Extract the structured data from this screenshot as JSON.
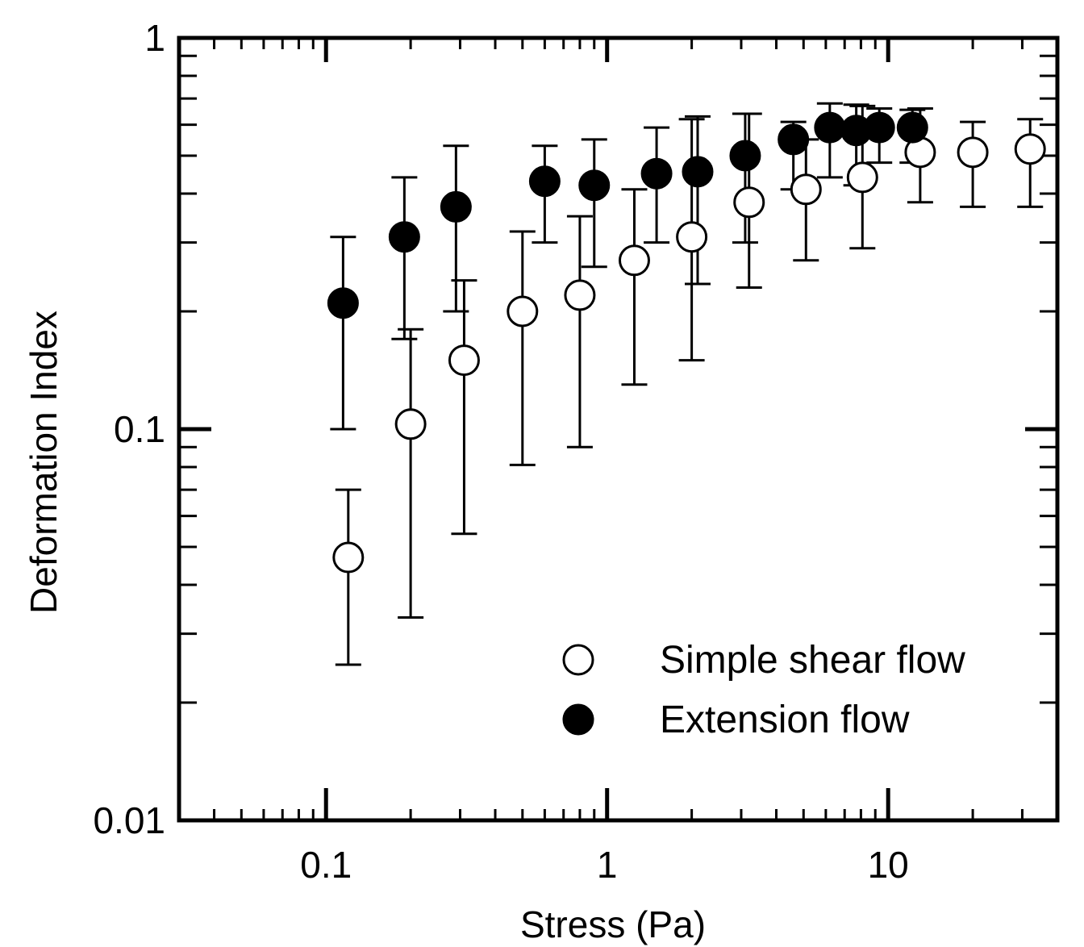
{
  "chart_data": {
    "type": "scatter",
    "title": "",
    "xlabel": "Stress (Pa)",
    "ylabel": "Deformation Index",
    "xscale": "log",
    "yscale": "log",
    "xlim": [
      0.03,
      40
    ],
    "ylim": [
      0.01,
      1
    ],
    "xticks": [
      {
        "value": 0.1,
        "label": "0.1"
      },
      {
        "value": 1,
        "label": "1"
      },
      {
        "value": 10,
        "label": "10"
      }
    ],
    "yticks": [
      {
        "value": 0.01,
        "label": "0.01"
      },
      {
        "value": 0.1,
        "label": "0.1"
      },
      {
        "value": 1,
        "label": "1"
      }
    ],
    "grid": false,
    "legend_position": "bottom-right",
    "series": [
      {
        "name": "Simple shear flow",
        "marker": "open-circle",
        "points": [
          {
            "x": 0.12,
            "y": 0.047,
            "lo": 0.025,
            "hi": 0.07
          },
          {
            "x": 0.2,
            "y": 0.103,
            "lo": 0.033,
            "hi": 0.18
          },
          {
            "x": 0.31,
            "y": 0.15,
            "lo": 0.054,
            "hi": 0.24
          },
          {
            "x": 0.5,
            "y": 0.2,
            "lo": 0.081,
            "hi": 0.32
          },
          {
            "x": 0.8,
            "y": 0.22,
            "lo": 0.09,
            "hi": 0.35
          },
          {
            "x": 1.25,
            "y": 0.27,
            "lo": 0.13,
            "hi": 0.41
          },
          {
            "x": 2.0,
            "y": 0.31,
            "lo": 0.15,
            "hi": 0.62
          },
          {
            "x": 3.2,
            "y": 0.38,
            "lo": 0.23,
            "hi": 0.64
          },
          {
            "x": 5.1,
            "y": 0.41,
            "lo": 0.27,
            "hi": 0.55
          },
          {
            "x": 8.1,
            "y": 0.44,
            "lo": 0.29,
            "hi": 0.67
          },
          {
            "x": 13,
            "y": 0.51,
            "lo": 0.38,
            "hi": 0.66
          },
          {
            "x": 20,
            "y": 0.51,
            "lo": 0.37,
            "hi": 0.61
          },
          {
            "x": 32,
            "y": 0.52,
            "lo": 0.37,
            "hi": 0.62
          }
        ]
      },
      {
        "name": "Extension flow",
        "marker": "filled-circle",
        "points": [
          {
            "x": 0.115,
            "y": 0.21,
            "lo": 0.1,
            "hi": 0.31
          },
          {
            "x": 0.19,
            "y": 0.31,
            "lo": 0.17,
            "hi": 0.44
          },
          {
            "x": 0.29,
            "y": 0.37,
            "lo": 0.2,
            "hi": 0.53
          },
          {
            "x": 0.6,
            "y": 0.43,
            "lo": 0.3,
            "hi": 0.53
          },
          {
            "x": 0.9,
            "y": 0.42,
            "lo": 0.26,
            "hi": 0.55
          },
          {
            "x": 1.5,
            "y": 0.45,
            "lo": 0.3,
            "hi": 0.59
          },
          {
            "x": 2.1,
            "y": 0.455,
            "lo": 0.235,
            "hi": 0.63
          },
          {
            "x": 3.1,
            "y": 0.5,
            "lo": 0.3,
            "hi": 0.64
          },
          {
            "x": 4.6,
            "y": 0.55,
            "lo": 0.41,
            "hi": 0.61
          },
          {
            "x": 6.2,
            "y": 0.59,
            "lo": 0.44,
            "hi": 0.68
          },
          {
            "x": 7.7,
            "y": 0.58,
            "lo": 0.42,
            "hi": 0.675
          },
          {
            "x": 9.3,
            "y": 0.59,
            "lo": 0.48,
            "hi": 0.66
          },
          {
            "x": 12.2,
            "y": 0.59,
            "lo": 0.48,
            "hi": 0.655
          }
        ]
      }
    ]
  }
}
